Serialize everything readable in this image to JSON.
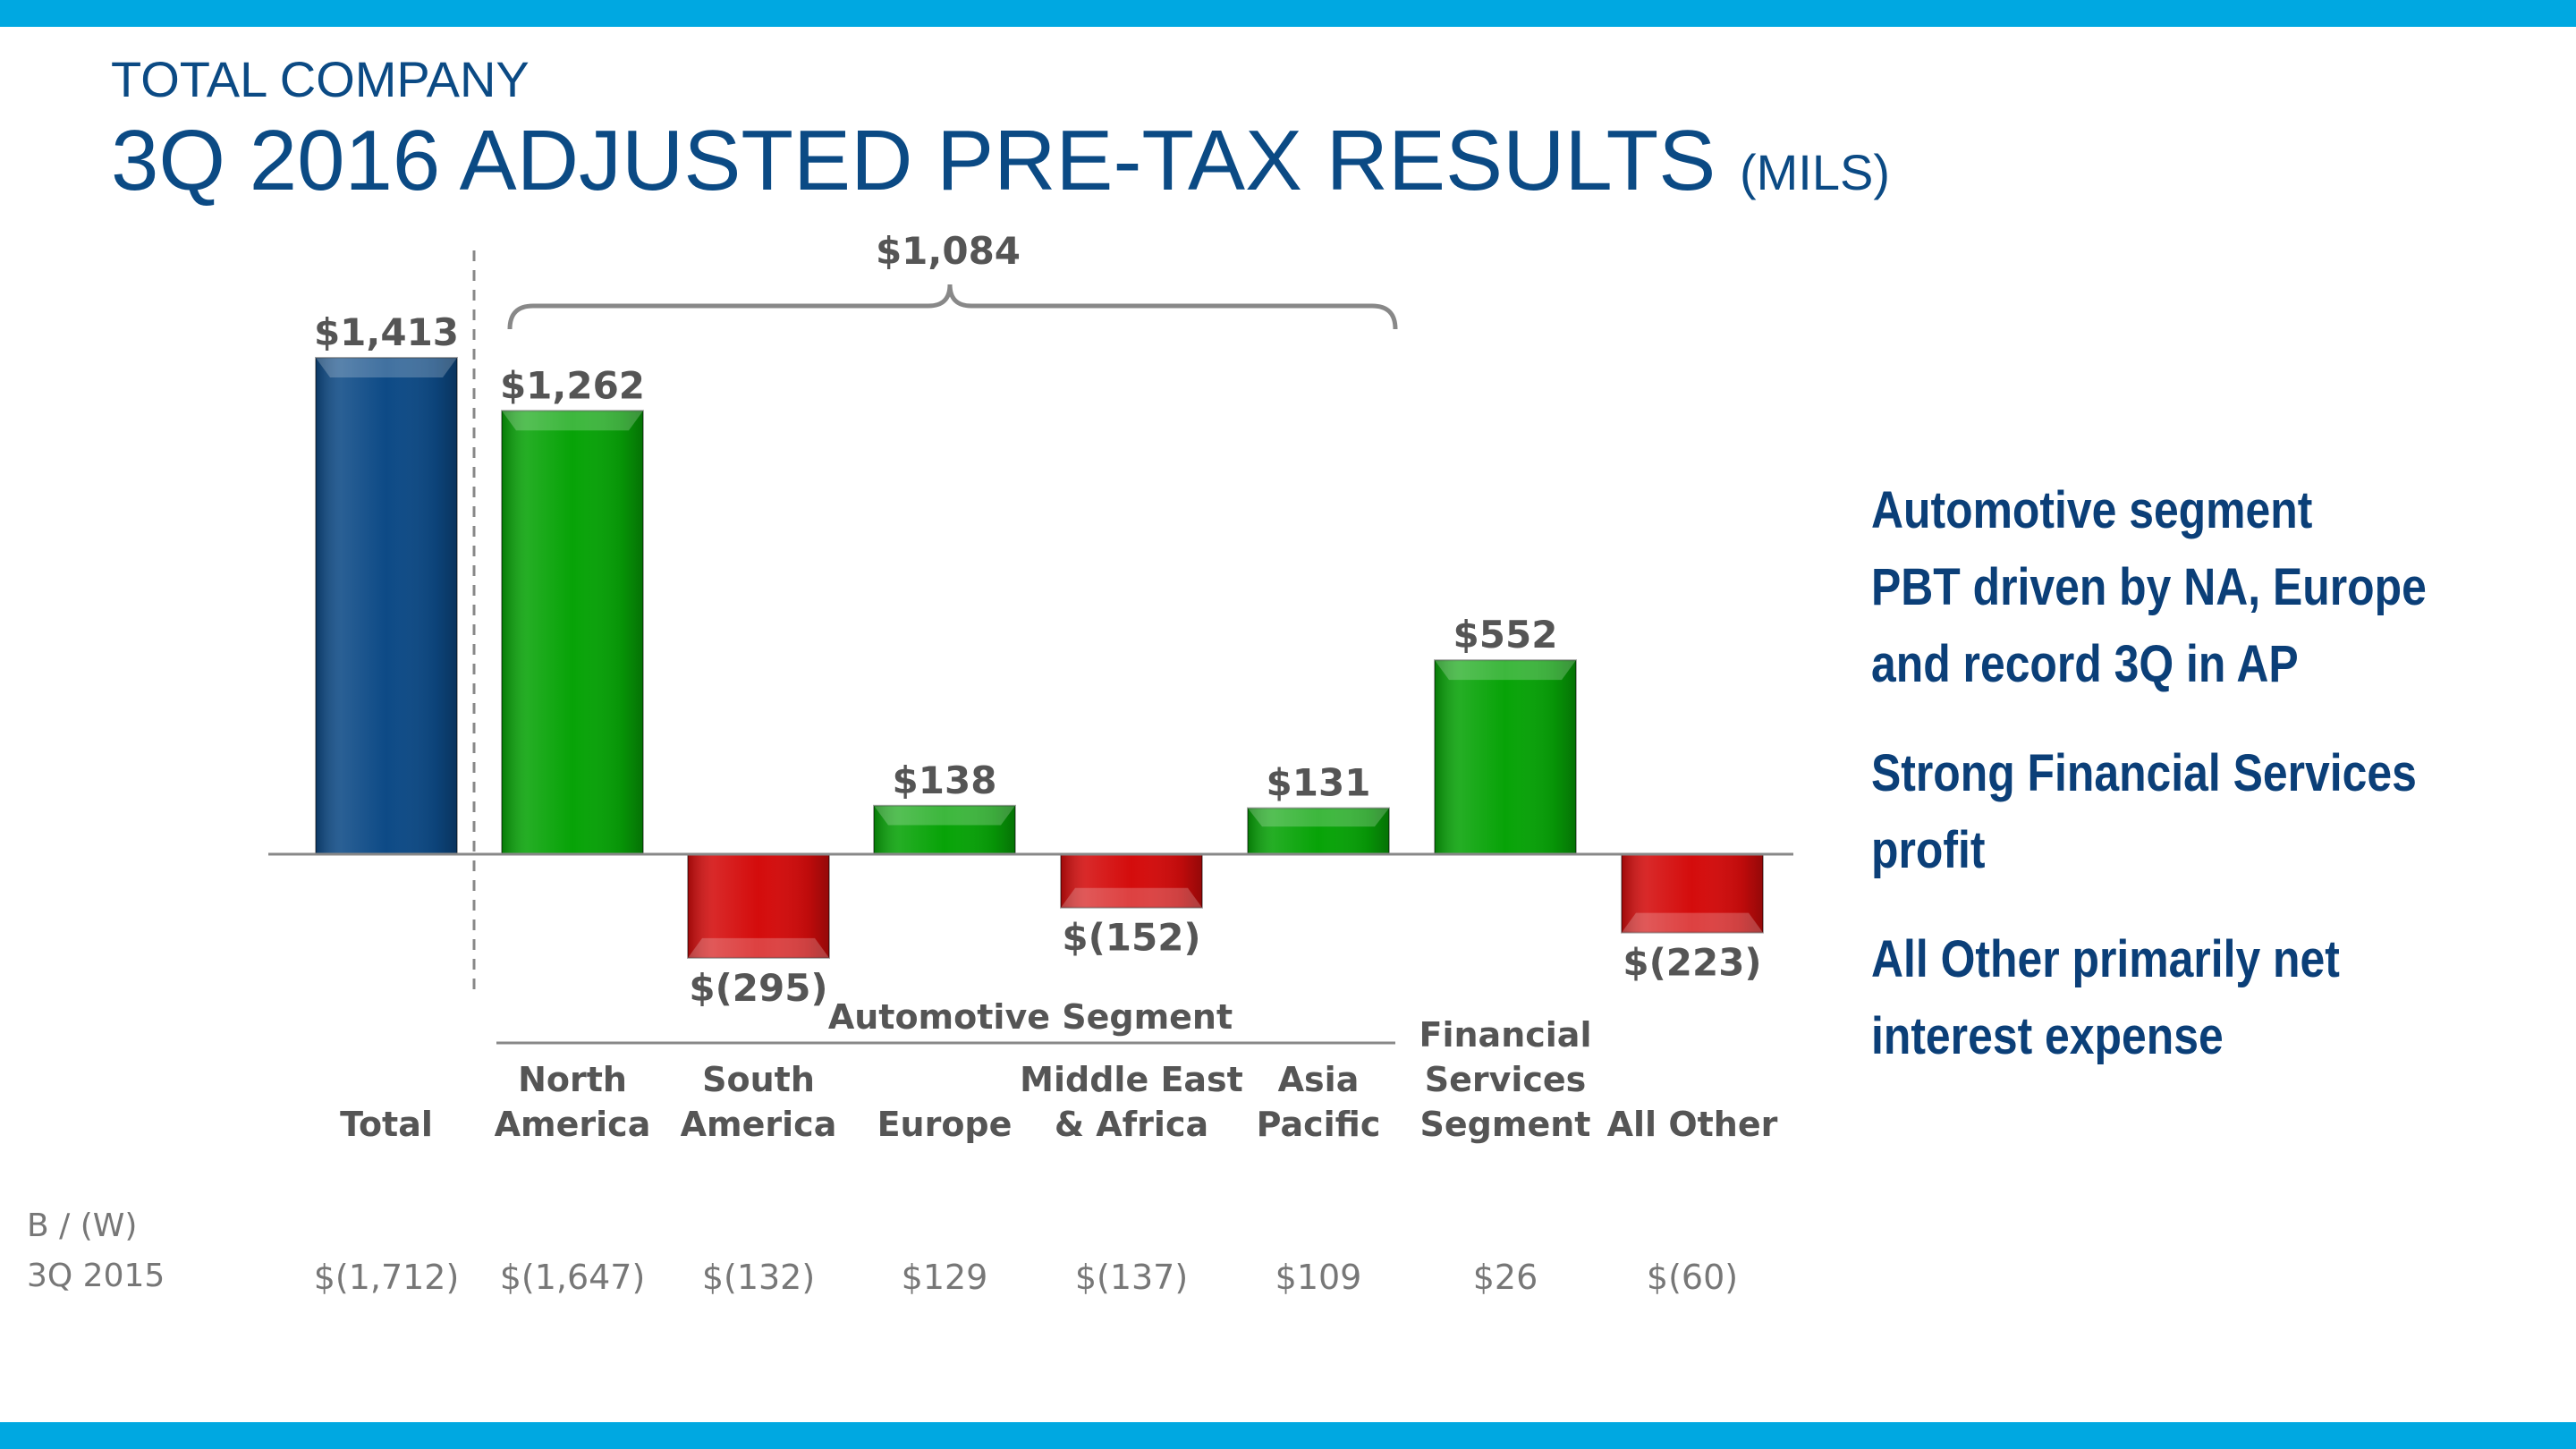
{
  "header": {
    "kicker": "TOTAL COMPANY",
    "title": "3Q 2016 ADJUSTED PRE-TAX RESULTS",
    "title_unit": "(MILS)"
  },
  "chart_data": {
    "type": "bar",
    "categories": [
      [
        "Total"
      ],
      [
        "North",
        "America"
      ],
      [
        "South",
        "America"
      ],
      [
        "Europe"
      ],
      [
        "Middle East",
        "& Africa"
      ],
      [
        "Asia",
        "Pacific"
      ],
      [
        "Financial",
        "Services",
        "Segment"
      ],
      [
        "All Other"
      ]
    ],
    "values": [
      1413,
      1262,
      -295,
      138,
      -152,
      131,
      552,
      -223
    ],
    "data_labels": [
      "$1,413",
      "$1,262",
      "$(295)",
      "$138",
      "$(152)",
      "$131",
      "$552",
      "$(223)"
    ],
    "colors": [
      "#0d4a86",
      "#07a307",
      "#d40c0c",
      "#07a307",
      "#d40c0c",
      "#07a307",
      "#07a307",
      "#d40c0c"
    ],
    "group_label": "Automotive Segment",
    "bracket_label": "$1,084",
    "ylim": [
      -295,
      1413
    ]
  },
  "comparison": {
    "label_line1": "B / (W)",
    "label_line2": "3Q 2015",
    "values": [
      "$(1,712)",
      "$(1,647)",
      "$(132)",
      "$129",
      "$(137)",
      "$109",
      "$26",
      "$(60)"
    ]
  },
  "bullets": [
    "Automotive segment\nPBT driven by NA, Europe\nand record 3Q in AP",
    "Strong Financial Services\nprofit",
    "All Other primarily net\ninterest expense"
  ]
}
